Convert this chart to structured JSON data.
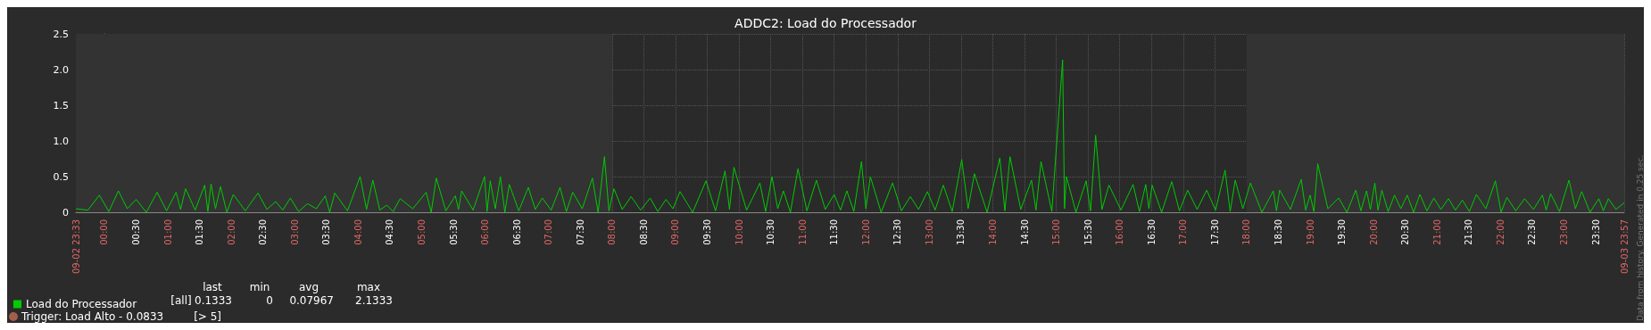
{
  "chart_data": {
    "type": "line",
    "title": "ADDC2: Load do Processador",
    "xlim": [
      -0.45,
      23.95
    ],
    "xticks": [
      {
        "value": -0.45,
        "label": "09-02 23:33"
      },
      {
        "value": 0,
        "label": "00:00"
      },
      {
        "value": 0.5,
        "label": "00:30"
      },
      {
        "value": 1,
        "label": "01:00"
      },
      {
        "value": 1.5,
        "label": "01:30"
      },
      {
        "value": 2,
        "label": "02:00"
      },
      {
        "value": 2.5,
        "label": "02:30"
      },
      {
        "value": 3,
        "label": "03:00"
      },
      {
        "value": 3.5,
        "label": "03:30"
      },
      {
        "value": 4,
        "label": "04:00"
      },
      {
        "value": 4.5,
        "label": "04:30"
      },
      {
        "value": 5,
        "label": "05:00"
      },
      {
        "value": 5.5,
        "label": "05:30"
      },
      {
        "value": 6,
        "label": "06:00"
      },
      {
        "value": 6.5,
        "label": "06:30"
      },
      {
        "value": 7,
        "label": "07:00"
      },
      {
        "value": 7.5,
        "label": "07:30"
      },
      {
        "value": 8,
        "label": "08:00"
      },
      {
        "value": 8.5,
        "label": "08:30"
      },
      {
        "value": 9,
        "label": "09:00"
      },
      {
        "value": 9.5,
        "label": "09:30"
      },
      {
        "value": 10,
        "label": "10:00"
      },
      {
        "value": 10.5,
        "label": "10:30"
      },
      {
        "value": 11,
        "label": "11:00"
      },
      {
        "value": 11.5,
        "label": "11:30"
      },
      {
        "value": 12,
        "label": "12:00"
      },
      {
        "value": 12.5,
        "label": "12:30"
      },
      {
        "value": 13,
        "label": "13:00"
      },
      {
        "value": 13.5,
        "label": "13:30"
      },
      {
        "value": 14,
        "label": "14:00"
      },
      {
        "value": 14.5,
        "label": "14:30"
      },
      {
        "value": 15,
        "label": "15:00"
      },
      {
        "value": 15.5,
        "label": "15:30"
      },
      {
        "value": 16,
        "label": "16:00"
      },
      {
        "value": 16.5,
        "label": "16:30"
      },
      {
        "value": 17,
        "label": "17:00"
      },
      {
        "value": 17.5,
        "label": "17:30"
      },
      {
        "value": 18,
        "label": "18:00"
      },
      {
        "value": 18.5,
        "label": "18:30"
      },
      {
        "value": 19,
        "label": "19:00"
      },
      {
        "value": 19.5,
        "label": "19:30"
      },
      {
        "value": 20,
        "label": "20:00"
      },
      {
        "value": 20.5,
        "label": "20:30"
      },
      {
        "value": 21,
        "label": "21:00"
      },
      {
        "value": 21.5,
        "label": "21:30"
      },
      {
        "value": 22,
        "label": "22:00"
      },
      {
        "value": 22.5,
        "label": "22:30"
      },
      {
        "value": 23,
        "label": "23:00"
      },
      {
        "value": 23.5,
        "label": "23:30"
      },
      {
        "value": 23.95,
        "label": "09-03 23:57"
      }
    ],
    "ylim": [
      0,
      2.5
    ],
    "yticks": [
      0,
      0.5,
      {
        "value": 1,
        "label": "1.0"
      },
      1.5,
      {
        "value": 2,
        "label": "2.0"
      },
      2.5
    ],
    "grid": true,
    "legend": "bottom left",
    "marker": "none",
    "line_style": "solid",
    "bands": [
      {
        "axis": "x",
        "from": -0.45,
        "to": 8,
        "color": "#333333"
      },
      {
        "axis": "x",
        "from": 18,
        "to": 23.95,
        "color": "#333333"
      }
    ],
    "annotations": [
      "last",
      "min",
      "avg",
      "max",
      "[all]",
      "0.1333",
      "0",
      "0.07967",
      "2.1333",
      "Trigger: Load Alto - 0.0833",
      "[> 5]",
      "Data from history. Generated in 0.25 sec."
    ],
    "series": [
      {
        "name": "Load do Processador",
        "color": "#00cc00",
        "x": [
          -0.45,
          -0.26,
          -0.08,
          0.07,
          0.22,
          0.36,
          0.5,
          0.66,
          0.83,
          0.98,
          1.13,
          1.2,
          1.28,
          1.43,
          1.58,
          1.63,
          1.68,
          1.75,
          1.83,
          1.93,
          2.03,
          2.22,
          2.42,
          2.56,
          2.7,
          2.81,
          2.93,
          3.06,
          3.2,
          3.34,
          3.48,
          3.55,
          3.63,
          3.83,
          4.03,
          4.13,
          4.23,
          4.34,
          4.45,
          4.55,
          4.66,
          4.86,
          5.07,
          5.15,
          5.23,
          5.38,
          5.53,
          5.58,
          5.63,
          5.81,
          5.99,
          6.03,
          6.08,
          6.16,
          6.24,
          6.31,
          6.38,
          6.53,
          6.68,
          6.79,
          6.9,
          7.04,
          7.18,
          7.28,
          7.38,
          7.53,
          7.69,
          7.78,
          7.88,
          7.95,
          8.03,
          8.16,
          8.3,
          8.45,
          8.6,
          8.72,
          8.85,
          8.96,
          9.07,
          9.27,
          9.48,
          9.63,
          9.78,
          9.85,
          9.92,
          10.12,
          10.33,
          10.42,
          10.52,
          10.61,
          10.7,
          10.81,
          10.93,
          11.07,
          11.22,
          11.36,
          11.5,
          11.6,
          11.7,
          11.81,
          11.93,
          12.0,
          12.07,
          12.24,
          12.42,
          12.56,
          12.7,
          12.83,
          12.97,
          13.09,
          13.22,
          13.36,
          13.51,
          13.61,
          13.71,
          13.91,
          14.11,
          14.19,
          14.27,
          14.44,
          14.61,
          14.68,
          14.76,
          14.93,
          15.1,
          15.13,
          15.16,
          15.31,
          15.47,
          15.54,
          15.62,
          15.72,
          15.83,
          16.02,
          16.21,
          16.31,
          16.41,
          16.46,
          16.51,
          16.66,
          16.82,
          16.94,
          17.07,
          17.22,
          17.37,
          17.51,
          17.66,
          17.74,
          17.82,
          17.94,
          18.06,
          18.24,
          18.42,
          18.47,
          18.52,
          18.69,
          18.86,
          18.93,
          19.0,
          19.06,
          19.12,
          19.28,
          19.45,
          19.58,
          19.72,
          19.8,
          19.89,
          19.95,
          20.02,
          20.07,
          20.13,
          20.23,
          20.33,
          20.43,
          20.53,
          20.63,
          20.73,
          20.84,
          20.95,
          21.06,
          21.18,
          21.29,
          21.4,
          21.51,
          21.62,
          21.77,
          21.92,
          22.01,
          22.1,
          22.24,
          22.38,
          22.52,
          22.66,
          22.72,
          22.79,
          22.93,
          23.08,
          23.18,
          23.28,
          23.41,
          23.55,
          23.62,
          23.7,
          23.82,
          23.95
        ],
        "values": [
          0.05,
          0.03,
          0.24,
          0.01,
          0.3,
          0.05,
          0.18,
          0,
          0.28,
          0.02,
          0.28,
          0.04,
          0.33,
          0.03,
          0.38,
          0.01,
          0.4,
          0.05,
          0.36,
          0,
          0.25,
          0.02,
          0.27,
          0.04,
          0.15,
          0.03,
          0.2,
          0.01,
          0.12,
          0.05,
          0.23,
          0,
          0.27,
          0.02,
          0.5,
          0.04,
          0.45,
          0.03,
          0.1,
          0.01,
          0.19,
          0.05,
          0.28,
          0,
          0.48,
          0.02,
          0.23,
          0.04,
          0.3,
          0.03,
          0.5,
          0.01,
          0.44,
          0.05,
          0.5,
          0,
          0.39,
          0.02,
          0.35,
          0.04,
          0.2,
          0.03,
          0.35,
          0.01,
          0.28,
          0.05,
          0.48,
          0,
          0.78,
          0.02,
          0.33,
          0.04,
          0.22,
          0.03,
          0.2,
          0.01,
          0.18,
          0.05,
          0.29,
          0,
          0.44,
          0.02,
          0.58,
          0.04,
          0.63,
          0.03,
          0.41,
          0.01,
          0.5,
          0.05,
          0.3,
          0,
          0.61,
          0.02,
          0.45,
          0.04,
          0.25,
          0.03,
          0.3,
          0.01,
          0.71,
          0.05,
          0.5,
          0,
          0.41,
          0.02,
          0.22,
          0.04,
          0.29,
          0.03,
          0.38,
          0.01,
          0.74,
          0.05,
          0.54,
          0,
          0.76,
          0.02,
          0.78,
          0.04,
          0.45,
          0.03,
          0.71,
          0.01,
          2.1333,
          0.05,
          0.5,
          0,
          0.44,
          0.02,
          1.08,
          0.04,
          0.38,
          0.03,
          0.39,
          0.01,
          0.39,
          0.05,
          0.38,
          0,
          0.43,
          0.02,
          0.31,
          0.04,
          0.31,
          0.03,
          0.59,
          0.01,
          0.45,
          0.05,
          0.41,
          0,
          0.3,
          0.02,
          0.31,
          0.04,
          0.46,
          0.03,
          0.24,
          0.01,
          0.68,
          0.05,
          0.2,
          0,
          0.31,
          0.02,
          0.3,
          0.04,
          0.41,
          0.03,
          0.31,
          0.01,
          0.24,
          0.05,
          0.24,
          0,
          0.25,
          0.02,
          0.2,
          0.04,
          0.19,
          0.03,
          0.17,
          0.01,
          0.25,
          0.05,
          0.44,
          0,
          0.21,
          0.02,
          0.19,
          0.04,
          0.24,
          0.03,
          0.26,
          0.01,
          0.45,
          0.05,
          0.29,
          0,
          0.19,
          0.02,
          0.19,
          0.04,
          0.1333
        ]
      }
    ]
  }
}
